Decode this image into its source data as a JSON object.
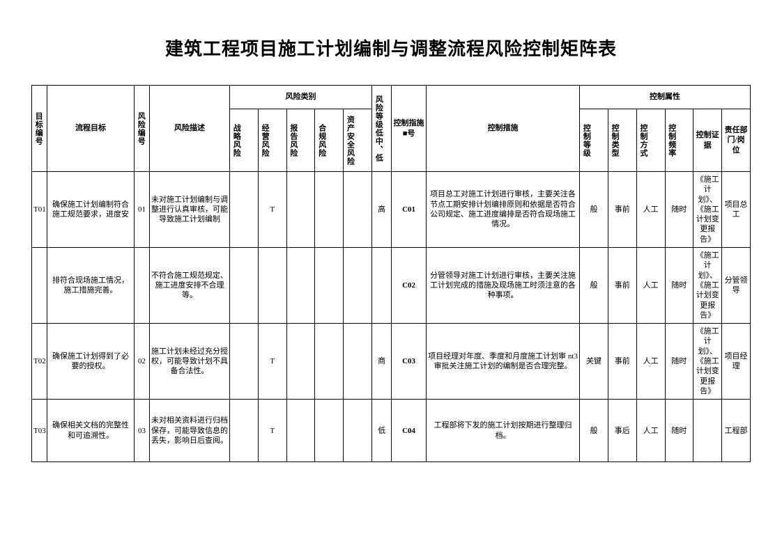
{
  "title": "建筑工程项目施工计划编制与调整流程风险控制矩阵表",
  "headers": {
    "goal_id": "目标编号",
    "goal": "流程目标",
    "risk_id": "风险编号",
    "risk_desc": "风险描述",
    "risk_cat_group": "风险类别",
    "cat_strategy": "战略风险",
    "cat_operate": "经营风险",
    "cat_report": "报告风险",
    "cat_comply": "合规风险",
    "cat_asset": "资产安全风险",
    "risk_level": "风险等级低中、低",
    "ctrl_no": "控制指施■号",
    "ctrl_measure": "控制措施",
    "ctrl_attr_group": "控制属性",
    "ctrl_level": "控制等级",
    "ctrl_type": "控制类型",
    "ctrl_mode": "控制方式",
    "ctrl_freq": "控制频率",
    "ctrl_basis": "控制证据",
    "dept": "责任部门/岗位"
  },
  "rows": [
    {
      "goal_id": "T01",
      "goal": "确保施工计划编制符合施工规范要求，进度安",
      "risk_id": "01",
      "risk_desc": "未对施工计划编制与调整进行认真审核，可能导致施工计划编制",
      "cat": {
        "strategy": "",
        "operate": "T",
        "report": "",
        "comply": "",
        "asset": ""
      },
      "risk_level": "高",
      "ctrl_no": "C01",
      "ctrl_measure": "项目总工对施工计划进行审核，主要关注各节点工期安排计划编排原则和依据是否符合公司规定、施工进度编排是否符合现场施工情况。",
      "ctrl_level": "般",
      "ctrl_type": "事前",
      "ctrl_mode": "人工",
      "ctrl_freq": "随时",
      "ctrl_basis": "《施工计划》、《施工计划变更报告》",
      "dept": "项目总工"
    },
    {
      "goal_id": "",
      "goal": "排符合现场施工情况，施工措施完善。",
      "risk_id": "",
      "risk_desc": "不符合施工规范规定、施工进度安排不合理等。",
      "cat": {
        "strategy": "",
        "operate": "",
        "report": "",
        "comply": "",
        "asset": ""
      },
      "risk_level": "",
      "ctrl_no": "C02",
      "ctrl_measure": "分管领导对施工计划进行审核，主要关注施工计划完成的措施及现场施工时须注意的各种事项。",
      "ctrl_level": "般",
      "ctrl_type": "事前",
      "ctrl_mode": "人工",
      "ctrl_freq": "随时",
      "ctrl_basis": "《施工计划》、《施工计划变更报告》",
      "dept": "分管领导"
    },
    {
      "goal_id": "T02",
      "goal": "确保施工计划得到了必要的授权。",
      "risk_id": "02",
      "risk_desc": "施工计划未经过充分授权，可能导致计划不具备合法性。",
      "cat": {
        "strategy": "",
        "operate": "T",
        "report": "",
        "comply": "",
        "asset": ""
      },
      "risk_level": "商",
      "ctrl_no": "C03",
      "ctrl_measure": "项目经理对年度、季度和月度施工计划审 nt3 审批关注施工计划的编制是否合理完整。",
      "ctrl_level": "关键",
      "ctrl_type": "事前",
      "ctrl_mode": "人工",
      "ctrl_freq": "随时",
      "ctrl_basis": "《施工计划》、《施工计划变更报告》",
      "dept": "项目经理"
    },
    {
      "goal_id": "T03",
      "goal": "确保相关文档的完整性和可追溯性。",
      "risk_id": "03",
      "risk_desc": "未对相关资料进行归档保存，可能导致信息的丢失，影响日后查阅。",
      "cat": {
        "strategy": "",
        "operate": "T",
        "report": "",
        "comply": "",
        "asset": ""
      },
      "risk_level": "低",
      "ctrl_no": "C04",
      "ctrl_measure": "工程部将下发的施工计划按期进行整理归档。",
      "ctrl_level": "般",
      "ctrl_type": "事后",
      "ctrl_mode": "人工",
      "ctrl_freq": "随时",
      "ctrl_basis": "",
      "dept": "工程部"
    }
  ]
}
